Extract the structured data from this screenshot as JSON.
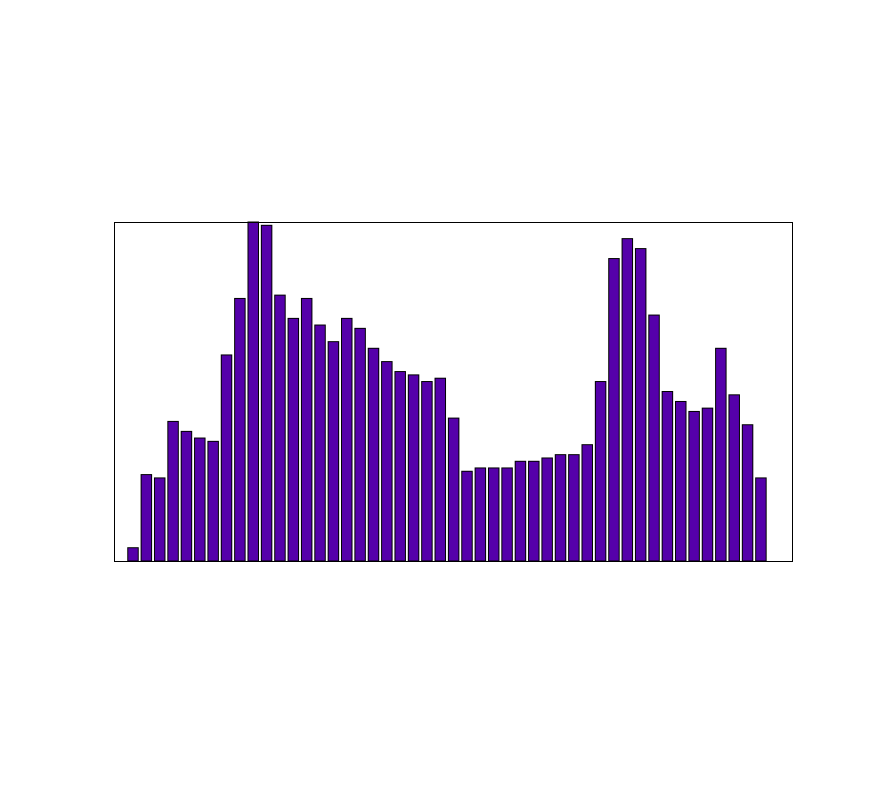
{
  "chart_data": {
    "type": "bar",
    "values": [
      4,
      26,
      25,
      42,
      39,
      37,
      36,
      62,
      79,
      102,
      101,
      80,
      73,
      79,
      71,
      66,
      73,
      70,
      64,
      60,
      57,
      56,
      54,
      55,
      43,
      27,
      28,
      28,
      28,
      30,
      30,
      31,
      32,
      32,
      35,
      54,
      91,
      97,
      94,
      74,
      51,
      48,
      45,
      46,
      64,
      50,
      41,
      25
    ],
    "ylim": [
      0,
      102
    ],
    "grid": false,
    "xticks": false,
    "yticks": false,
    "colors": {
      "bar_fill": "#5500aa",
      "bar_edge": "#000000",
      "frame": "#000000",
      "background": "#ffffff"
    }
  }
}
